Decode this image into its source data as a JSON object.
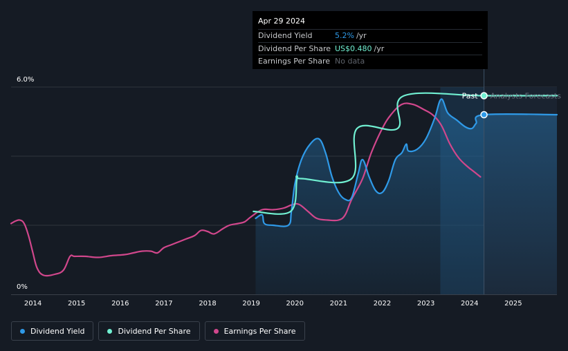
{
  "tooltip": {
    "date": "Apr 29 2024",
    "rows": [
      {
        "label": "Dividend Yield",
        "value": "5.2%",
        "unit": "/yr",
        "color": "#2f9ae8"
      },
      {
        "label": "Dividend Per Share",
        "value": "US$0.480",
        "unit": "/yr",
        "color": "#71f0d2"
      },
      {
        "label": "Earnings Per Share",
        "value": "No data",
        "unit": "",
        "color": "#5e636b"
      }
    ]
  },
  "markers": {
    "past": "Past",
    "forecast": "Analysts Forecasts"
  },
  "legend": [
    {
      "label": "Dividend Yield",
      "color": "#2f9ae8"
    },
    {
      "label": "Dividend Per Share",
      "color": "#71f0d2"
    },
    {
      "label": "Earnings Per Share",
      "color": "#d1478c"
    }
  ],
  "chart_data": {
    "type": "line",
    "title": "",
    "xlabel": "",
    "ylabel": "",
    "xlim": [
      2013.5,
      2026.0
    ],
    "ylim": [
      0,
      6.0
    ],
    "y_tick_labels": [
      {
        "value": 6.0,
        "label": "6.0%"
      },
      {
        "value": 0,
        "label": "0%"
      }
    ],
    "x_ticks": [
      2014,
      2015,
      2016,
      2017,
      2018,
      2019,
      2020,
      2021,
      2022,
      2023,
      2024,
      2025
    ],
    "x_tick_labels": [
      "2014",
      "2015",
      "2016",
      "2017",
      "2018",
      "2019",
      "2020",
      "2021",
      "2022",
      "2023",
      "2024",
      "2025"
    ],
    "past_forecast_split": 2024.33,
    "series": [
      {
        "name": "Dividend Yield",
        "color": "#2f9ae8",
        "points": [
          [
            2019.1,
            2.2
          ],
          [
            2019.25,
            2.3
          ],
          [
            2019.3,
            2.05
          ],
          [
            2019.5,
            2.0
          ],
          [
            2019.85,
            2.0
          ],
          [
            2019.92,
            2.4
          ],
          [
            2020.0,
            3.2
          ],
          [
            2020.15,
            3.9
          ],
          [
            2020.35,
            4.35
          ],
          [
            2020.55,
            4.5
          ],
          [
            2020.7,
            4.1
          ],
          [
            2020.85,
            3.4
          ],
          [
            2021.0,
            2.95
          ],
          [
            2021.15,
            2.75
          ],
          [
            2021.3,
            2.8
          ],
          [
            2021.45,
            3.5
          ],
          [
            2021.55,
            3.9
          ],
          [
            2021.7,
            3.4
          ],
          [
            2021.85,
            3.0
          ],
          [
            2022.0,
            2.95
          ],
          [
            2022.15,
            3.3
          ],
          [
            2022.3,
            3.9
          ],
          [
            2022.45,
            4.1
          ],
          [
            2022.55,
            4.35
          ],
          [
            2022.6,
            4.15
          ],
          [
            2022.8,
            4.2
          ],
          [
            2023.0,
            4.5
          ],
          [
            2023.2,
            5.1
          ],
          [
            2023.35,
            5.65
          ],
          [
            2023.5,
            5.25
          ],
          [
            2023.7,
            5.05
          ],
          [
            2023.9,
            4.85
          ],
          [
            2024.05,
            4.8
          ],
          [
            2024.15,
            4.95
          ],
          [
            2024.33,
            5.2
          ],
          [
            2026.0,
            5.2
          ]
        ]
      },
      {
        "name": "Dividend Per Share",
        "color": "#71f0d2",
        "points": [
          [
            2019.05,
            2.4
          ],
          [
            2019.9,
            2.4
          ],
          [
            2020.05,
            3.35
          ],
          [
            2020.15,
            3.35
          ],
          [
            2021.3,
            3.35
          ],
          [
            2021.42,
            4.8
          ],
          [
            2022.35,
            4.8
          ],
          [
            2022.5,
            5.75
          ],
          [
            2024.33,
            5.75
          ],
          [
            2026.0,
            5.75
          ]
        ]
      },
      {
        "name": "Earnings Per Share",
        "color": "#d1478c",
        "points": [
          [
            2013.5,
            2.05
          ],
          [
            2013.6,
            2.12
          ],
          [
            2013.7,
            2.15
          ],
          [
            2013.8,
            2.05
          ],
          [
            2013.9,
            1.7
          ],
          [
            2014.0,
            1.2
          ],
          [
            2014.1,
            0.75
          ],
          [
            2014.25,
            0.55
          ],
          [
            2014.5,
            0.58
          ],
          [
            2014.7,
            0.7
          ],
          [
            2014.85,
            1.1
          ],
          [
            2014.95,
            1.1
          ],
          [
            2015.2,
            1.1
          ],
          [
            2015.5,
            1.07
          ],
          [
            2015.8,
            1.12
          ],
          [
            2016.1,
            1.15
          ],
          [
            2016.3,
            1.2
          ],
          [
            2016.5,
            1.25
          ],
          [
            2016.7,
            1.25
          ],
          [
            2016.85,
            1.2
          ],
          [
            2017.0,
            1.35
          ],
          [
            2017.2,
            1.45
          ],
          [
            2017.5,
            1.6
          ],
          [
            2017.7,
            1.7
          ],
          [
            2017.85,
            1.85
          ],
          [
            2018.0,
            1.82
          ],
          [
            2018.15,
            1.75
          ],
          [
            2018.35,
            1.9
          ],
          [
            2018.5,
            2.0
          ],
          [
            2018.7,
            2.05
          ],
          [
            2018.85,
            2.1
          ],
          [
            2019.0,
            2.25
          ],
          [
            2019.25,
            2.45
          ],
          [
            2019.5,
            2.45
          ],
          [
            2019.75,
            2.5
          ],
          [
            2019.95,
            2.6
          ],
          [
            2020.1,
            2.6
          ],
          [
            2020.3,
            2.4
          ],
          [
            2020.5,
            2.2
          ],
          [
            2020.75,
            2.15
          ],
          [
            2021.0,
            2.15
          ],
          [
            2021.15,
            2.3
          ],
          [
            2021.3,
            2.75
          ],
          [
            2021.55,
            3.35
          ],
          [
            2021.75,
            4.1
          ],
          [
            2022.0,
            4.8
          ],
          [
            2022.2,
            5.2
          ],
          [
            2022.45,
            5.5
          ],
          [
            2022.7,
            5.5
          ],
          [
            2022.95,
            5.35
          ],
          [
            2023.15,
            5.2
          ],
          [
            2023.35,
            4.9
          ],
          [
            2023.55,
            4.35
          ],
          [
            2023.75,
            3.95
          ],
          [
            2023.95,
            3.7
          ],
          [
            2024.1,
            3.55
          ],
          [
            2024.25,
            3.4
          ]
        ]
      }
    ]
  }
}
